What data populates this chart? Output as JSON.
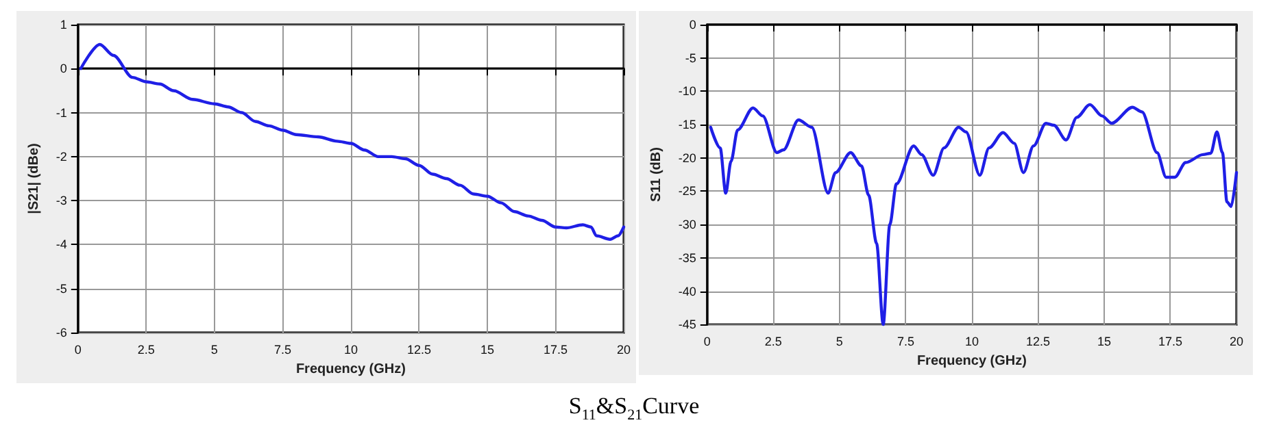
{
  "chart_data": [
    {
      "type": "line",
      "xlabel": "Frequency (GHz)",
      "ylabel": "|S21| (dBe)",
      "xlim": [
        0,
        20
      ],
      "xticks": [
        0,
        2.5,
        5,
        7.5,
        10,
        12.5,
        15,
        17.5,
        20
      ],
      "ylim": [
        -6,
        1
      ],
      "yticks": [
        -6,
        -5,
        -4,
        -3,
        -2,
        -1,
        0,
        1
      ],
      "grid": true,
      "marker": "none",
      "line_style": "solid",
      "annotations": [
        "S$_{11}$&S$_{21}$Curve"
      ],
      "series": [
        {
          "color": "#1f1fe6",
          "x": [
            0.1,
            0.8,
            1.3,
            2,
            2.5,
            3,
            3.5,
            4.2,
            5,
            5.5,
            6,
            6.5,
            7,
            7.5,
            8,
            8.8,
            9.5,
            10,
            10.5,
            11,
            11.5,
            12,
            12.5,
            13,
            13.5,
            14,
            14.5,
            15,
            15.5,
            16,
            16.5,
            17,
            17.5,
            17.9,
            18.5,
            18.8,
            19,
            19.5,
            19.8,
            20
          ],
          "values": [
            0,
            0.55,
            0.3,
            -0.2,
            -0.3,
            -0.35,
            -0.5,
            -0.7,
            -0.8,
            -0.87,
            -1.0,
            -1.2,
            -1.3,
            -1.4,
            -1.5,
            -1.55,
            -1.65,
            -1.7,
            -1.85,
            -2.0,
            -2.0,
            -2.05,
            -2.2,
            -2.4,
            -2.5,
            -2.65,
            -2.85,
            -2.9,
            -3.05,
            -3.25,
            -3.35,
            -3.45,
            -3.6,
            -3.62,
            -3.55,
            -3.6,
            -3.8,
            -3.88,
            -3.8,
            -3.6
          ]
        }
      ]
    },
    {
      "type": "line",
      "xlabel": "Frequency (GHz)",
      "ylabel": "S11 (dB)",
      "xlim": [
        0,
        20
      ],
      "xticks": [
        0,
        2.5,
        5,
        7.5,
        10,
        12.5,
        15,
        17.5,
        20
      ],
      "ylim": [
        -45,
        0
      ],
      "yticks": [
        -45,
        -40,
        -35,
        -30,
        -25,
        -20,
        -15,
        -10,
        -5,
        0
      ],
      "grid": true,
      "marker": "none",
      "line_style": "solid",
      "series": [
        {
          "color": "#1f1fe6",
          "x": [
            0.13,
            0.49,
            0.7,
            0.9,
            1.15,
            1.73,
            2.1,
            2.63,
            2.88,
            3.45,
            3.95,
            4.57,
            4.85,
            5.42,
            5.83,
            6.1,
            6.4,
            6.65,
            6.9,
            7.15,
            7.8,
            8.1,
            8.54,
            8.95,
            9.5,
            9.78,
            10.3,
            10.65,
            11.18,
            11.6,
            11.95,
            12.33,
            12.8,
            13.1,
            13.56,
            13.97,
            14.46,
            14.92,
            15.28,
            16.07,
            16.43,
            17.0,
            17.34,
            17.67,
            18.08,
            18.74,
            19.03,
            19.26,
            19.47,
            19.64,
            19.8,
            20
          ],
          "values": [
            -15.4,
            -18.5,
            -25.3,
            -20.5,
            -15.8,
            -12.5,
            -13.7,
            -19.2,
            -18.8,
            -14.3,
            -15.4,
            -25.3,
            -22.2,
            -19.2,
            -21.2,
            -25.6,
            -32.8,
            -45,
            -30,
            -23.9,
            -18.2,
            -19.5,
            -22.6,
            -18.5,
            -15.4,
            -16.1,
            -22.6,
            -18.5,
            -16.2,
            -17.8,
            -22.2,
            -18.2,
            -14.8,
            -15.1,
            -17.3,
            -13.9,
            -12.0,
            -13.7,
            -14.8,
            -12.4,
            -13.1,
            -19.2,
            -22.9,
            -22.9,
            -20.7,
            -19.5,
            -19.3,
            -16.1,
            -19.2,
            -26.6,
            -27.3,
            -22.2
          ]
        }
      ]
    }
  ]
}
